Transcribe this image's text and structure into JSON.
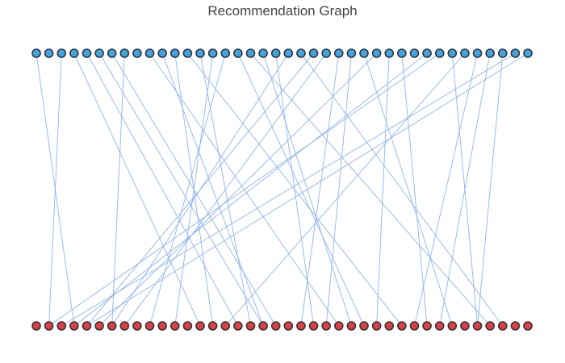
{
  "title": "Recommendation Graph",
  "colors": {
    "top_node": "#42a5e0",
    "bottom_node": "#e53e3e",
    "edge": "#8fb4ec"
  },
  "graph": {
    "top_count": 40,
    "bottom_count": 40,
    "edges": [
      [
        0,
        3
      ],
      [
        2,
        1
      ],
      [
        3,
        13
      ],
      [
        4,
        16
      ],
      [
        5,
        18
      ],
      [
        6,
        19
      ],
      [
        7,
        6
      ],
      [
        9,
        24
      ],
      [
        10,
        18
      ],
      [
        11,
        14
      ],
      [
        12,
        29
      ],
      [
        13,
        17
      ],
      [
        14,
        11
      ],
      [
        15,
        9
      ],
      [
        16,
        26
      ],
      [
        17,
        36
      ],
      [
        18,
        25
      ],
      [
        19,
        22
      ],
      [
        20,
        6
      ],
      [
        21,
        37
      ],
      [
        22,
        4
      ],
      [
        23,
        7
      ],
      [
        24,
        21
      ],
      [
        25,
        23
      ],
      [
        26,
        33
      ],
      [
        27,
        5
      ],
      [
        28,
        27
      ],
      [
        29,
        31
      ],
      [
        31,
        3
      ],
      [
        32,
        1
      ],
      [
        33,
        35
      ],
      [
        34,
        15
      ],
      [
        35,
        30
      ],
      [
        36,
        32
      ],
      [
        37,
        35
      ],
      [
        38,
        2
      ],
      [
        39,
        4
      ]
    ]
  }
}
